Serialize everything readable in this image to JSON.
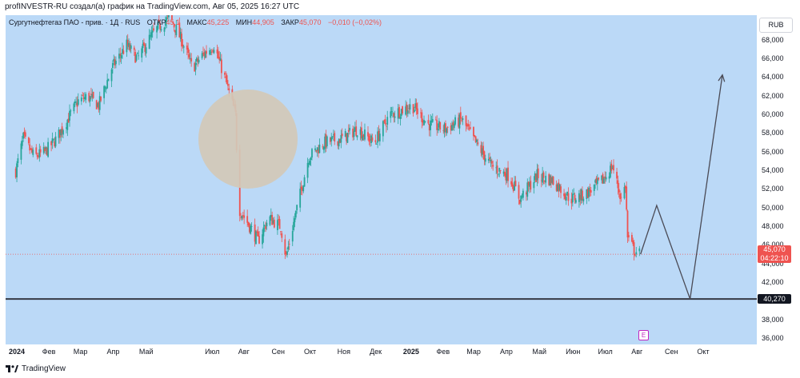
{
  "caption": "profINVESTR-RU создал(а) график на TradingView.com, Авг 05, 2025 16:27 UTC",
  "legend": {
    "symbol": "Сургутнефтегаз ПАО - прив. · 1Д · RUS",
    "open_label": "ОТКР",
    "open_value": "45,1",
    "high_label": "МАКС",
    "high_value": "45,225",
    "low_label": "МИН",
    "low_value": "44,905",
    "close_label": "ЗАКР",
    "close_value": "45,070",
    "change": "−0,010 (−0,02%)"
  },
  "currency": "RUB",
  "last_price_tag": "45,070",
  "countdown": "04:22:10",
  "level_tag": "40,270",
  "earnings_icon_label": "E",
  "brand": "TradingView",
  "colors": {
    "background": "#bbd9f7",
    "up": "#26a69a",
    "down": "#ef5350",
    "level_line": "#363a45",
    "projection": "#4a4a55",
    "circle": "#d2c9b7"
  },
  "chart_data": {
    "type": "candlestick",
    "title": "Сургутнефтегаз ПАО - прив. · 1Д · RUS",
    "y_unit": "RUB",
    "y_ticks": [
      "36,000",
      "38,000",
      "40,000",
      "42,000",
      "44,000",
      "46,000",
      "48,000",
      "50,000",
      "52,000",
      "54,000",
      "56,000",
      "58,000",
      "60,000",
      "62,000",
      "64,000",
      "66,000",
      "68,000"
    ],
    "ylim": [
      35.4,
      70.7
    ],
    "x_ticks": [
      "2024",
      "Фев",
      "Мар",
      "Апр",
      "Май",
      "Июл",
      "Авг",
      "Сен",
      "Окт",
      "Ноя",
      "Дек",
      "2025",
      "Фев",
      "Мар",
      "Апр",
      "Май",
      "Июн",
      "Июл",
      "Авг",
      "Сен",
      "Окт"
    ],
    "price_path": [
      {
        "date": "2024-01-03",
        "close": 54.0
      },
      {
        "date": "2024-01-10",
        "close": 57.5
      },
      {
        "date": "2024-01-20",
        "close": 55.5
      },
      {
        "date": "2024-01-30",
        "close": 56.0
      },
      {
        "date": "2024-02-10",
        "close": 57.5
      },
      {
        "date": "2024-02-20",
        "close": 59.5
      },
      {
        "date": "2024-03-01",
        "close": 61.5
      },
      {
        "date": "2024-03-10",
        "close": 62.0
      },
      {
        "date": "2024-03-20",
        "close": 61.0
      },
      {
        "date": "2024-04-01",
        "close": 65.0
      },
      {
        "date": "2024-04-15",
        "close": 67.5
      },
      {
        "date": "2024-04-25",
        "close": 66.0
      },
      {
        "date": "2024-05-05",
        "close": 68.0
      },
      {
        "date": "2024-05-15",
        "close": 69.5
      },
      {
        "date": "2024-05-25",
        "close": 70.5
      },
      {
        "date": "2024-06-05",
        "close": 68.0
      },
      {
        "date": "2024-06-15",
        "close": 65.0
      },
      {
        "date": "2024-06-25",
        "close": 66.5
      },
      {
        "date": "2024-07-05",
        "close": 67.5
      },
      {
        "date": "2024-07-15",
        "close": 64.0
      },
      {
        "date": "2024-07-25",
        "close": 60.0
      },
      {
        "date": "2024-07-28",
        "close": 50.0
      },
      {
        "date": "2024-08-05",
        "close": 48.5
      },
      {
        "date": "2024-08-15",
        "close": 46.5
      },
      {
        "date": "2024-08-25",
        "close": 49.0
      },
      {
        "date": "2024-09-05",
        "close": 48.0
      },
      {
        "date": "2024-09-10",
        "close": 44.8
      },
      {
        "date": "2024-09-20",
        "close": 50.0
      },
      {
        "date": "2024-10-01",
        "close": 55.5
      },
      {
        "date": "2024-10-15",
        "close": 57.0
      },
      {
        "date": "2024-11-01",
        "close": 57.5
      },
      {
        "date": "2024-11-15",
        "close": 58.5
      },
      {
        "date": "2024-12-01",
        "close": 57.0
      },
      {
        "date": "2024-12-15",
        "close": 60.0
      },
      {
        "date": "2025-01-05",
        "close": 61.0
      },
      {
        "date": "2025-01-20",
        "close": 59.0
      },
      {
        "date": "2025-02-05",
        "close": 58.5
      },
      {
        "date": "2025-02-20",
        "close": 59.5
      },
      {
        "date": "2025-03-05",
        "close": 57.0
      },
      {
        "date": "2025-03-20",
        "close": 54.5
      },
      {
        "date": "2025-04-05",
        "close": 53.5
      },
      {
        "date": "2025-04-15",
        "close": 51.0
      },
      {
        "date": "2025-05-01",
        "close": 53.5
      },
      {
        "date": "2025-05-15",
        "close": 53.0
      },
      {
        "date": "2025-06-01",
        "close": 51.0
      },
      {
        "date": "2025-06-15",
        "close": 51.5
      },
      {
        "date": "2025-07-01",
        "close": 53.0
      },
      {
        "date": "2025-07-10",
        "close": 54.5
      },
      {
        "date": "2025-07-18",
        "close": 51.0
      },
      {
        "date": "2025-07-22",
        "close": 52.5
      },
      {
        "date": "2025-07-24",
        "close": 46.8
      },
      {
        "date": "2025-07-30",
        "close": 45.5
      },
      {
        "date": "2025-08-05",
        "close": 45.07
      }
    ],
    "last_close": 45.07,
    "horizontal_level": 40.27,
    "projection_path": [
      {
        "date": "2025-08-05",
        "price": 45.07
      },
      {
        "date": "2025-08-20",
        "price": 50.3
      },
      {
        "date": "2025-09-20",
        "price": 40.27
      },
      {
        "date": "2025-10-20",
        "price": 64.3
      }
    ]
  }
}
